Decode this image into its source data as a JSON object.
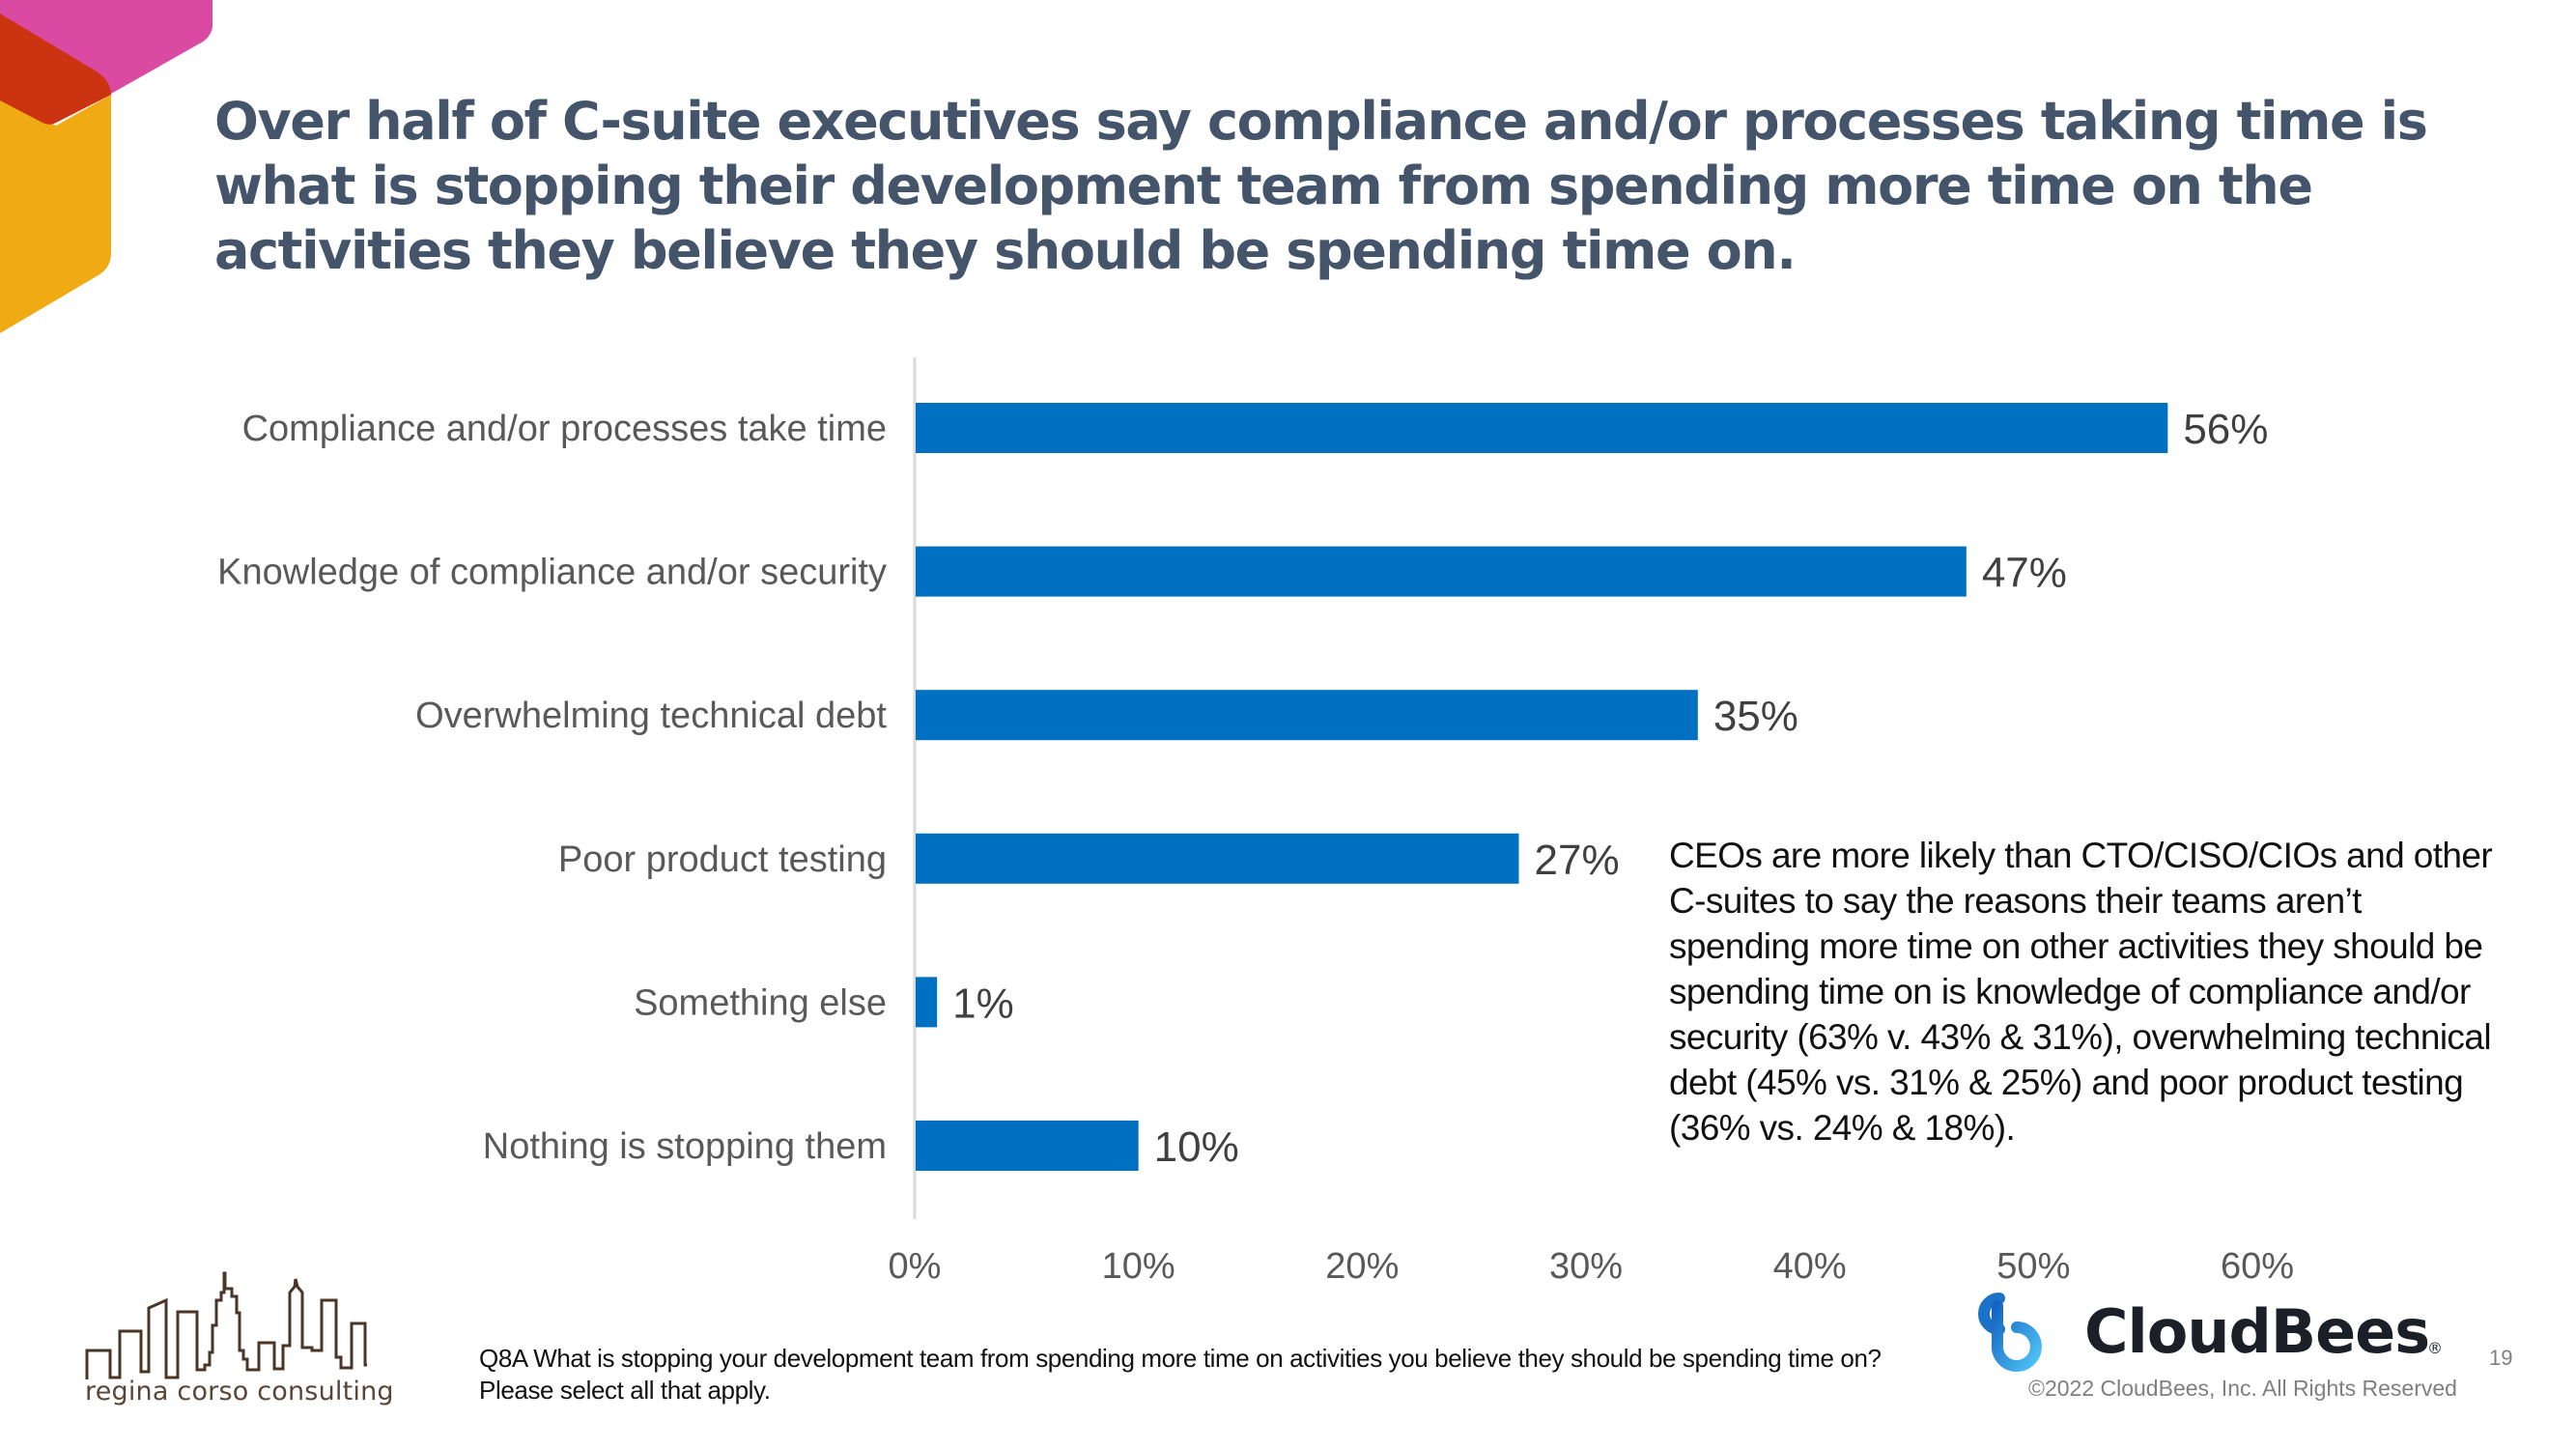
{
  "slide": {
    "title": "Over half of C-suite executives say compliance and/or processes taking time is what is stopping their development team from spending more time on the activities they believe they should be spending time on.",
    "annotation": "CEOs are more likely than CTO/CISO/CIOs and other C-suites to say the reasons their teams aren’t spending more time on other activities they should be spending time on is knowledge of compliance and/or security (63% v. 43% & 31%), overwhelming technical debt (45% vs. 31% & 25%) and poor product testing (36% vs. 24% & 18%).",
    "footnote": "Q8A What is stopping your development team from spending more time on activities you believe they should be spending time on? Please select all that apply.",
    "page_number": "19",
    "colors": {
      "title": "#44546A",
      "bar": "#0070C0",
      "logo_pink": "#DB4AA2",
      "logo_red": "#CC3311",
      "logo_yellow": "#F0AA14"
    }
  },
  "branding": {
    "consultancy_name": "regina corso consulting",
    "company_name": "CloudBees",
    "registered_mark": "®",
    "copyright": "©2022 CloudBees, Inc. All Rights Reserved"
  },
  "chart_data": {
    "type": "bar",
    "orientation": "horizontal",
    "title": "",
    "xlabel": "",
    "ylabel": "",
    "categories": [
      "Compliance and/or processes take time",
      "Knowledge of compliance and/or security",
      "Overwhelming technical debt",
      "Poor product testing",
      "Something else",
      "Nothing is stopping them"
    ],
    "values": [
      56,
      47,
      35,
      27,
      1,
      10
    ],
    "value_labels": [
      "56%",
      "47%",
      "35%",
      "27%",
      "1%",
      "10%"
    ],
    "xlim": [
      0,
      60
    ],
    "x_ticks": [
      0,
      10,
      20,
      30,
      40,
      50,
      60
    ],
    "x_tick_labels": [
      "0%",
      "10%",
      "20%",
      "30%",
      "40%",
      "50%",
      "60%"
    ],
    "grid": false,
    "legend": "none",
    "unit": "%"
  }
}
